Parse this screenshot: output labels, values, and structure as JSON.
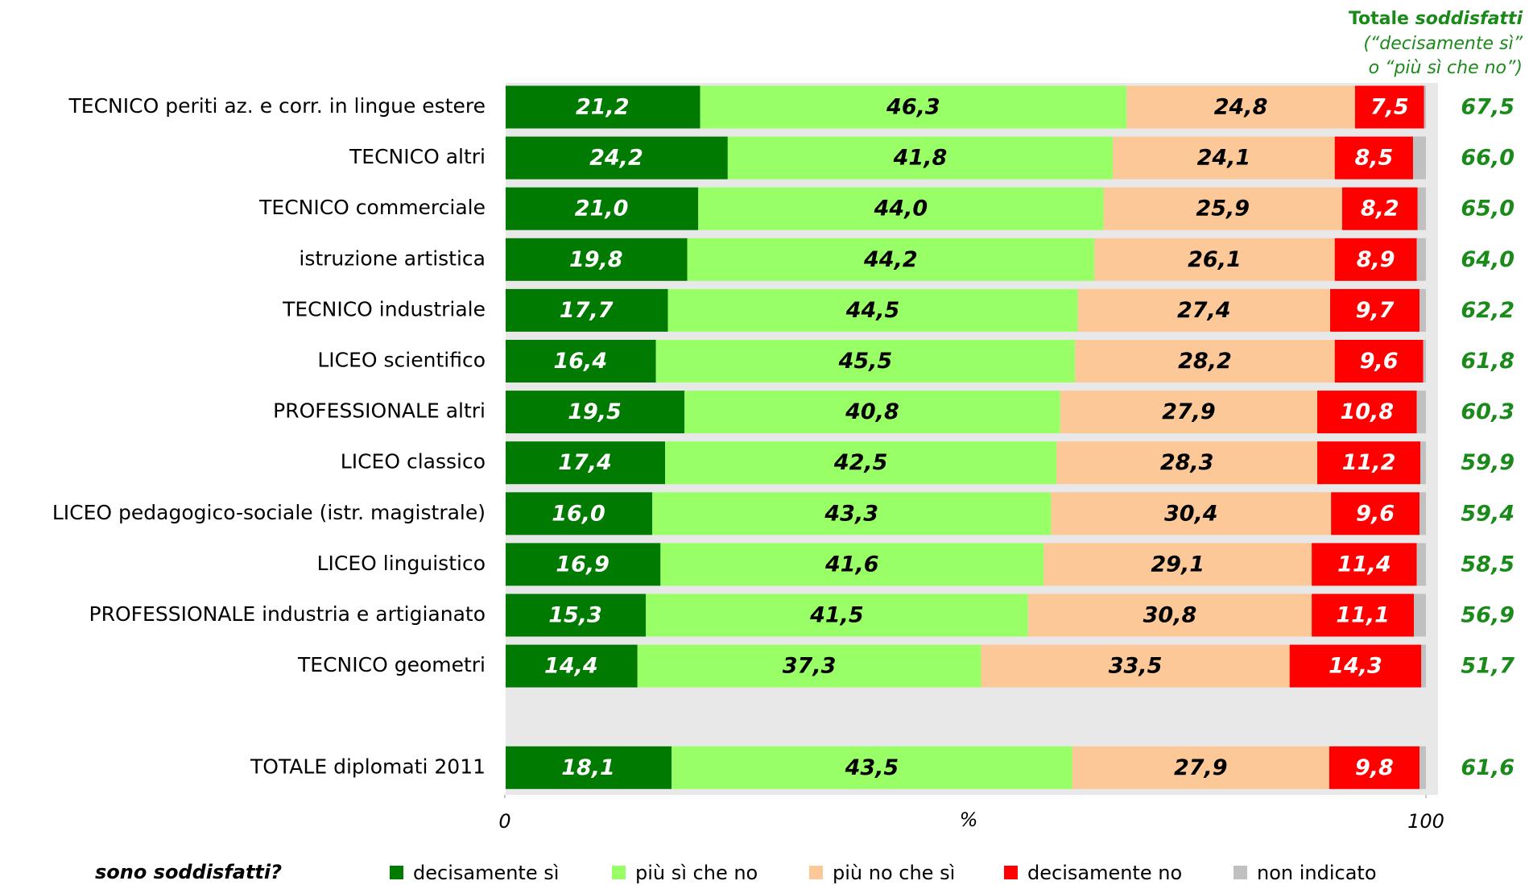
{
  "chart_data": {
    "type": "stacked_bar_horizontal",
    "total_header": {
      "bold": "Totale",
      "italic": "soddisfatti",
      "line2": "(“decisamente sì”",
      "line3": "o “più sì che no”)"
    },
    "categories": [
      "TECNICO periti az. e corr. in lingue estere",
      "TECNICO altri",
      "TECNICO commerciale",
      "istruzione artistica",
      "TECNICO industriale",
      "LICEO scientifico",
      "PROFESSIONALE altri",
      "LICEO classico",
      "LICEO pedagogico-sociale (istr. magistrale)",
      "LICEO linguistico",
      "PROFESSIONALE industria e artigianato",
      "TECNICO geometri",
      null,
      "TOTALE diplomati 2011"
    ],
    "series": [
      {
        "name": "decisamente sì",
        "color": "#007a00",
        "values": [
          21.2,
          24.2,
          21.0,
          19.8,
          17.7,
          16.4,
          19.5,
          17.4,
          16.0,
          16.9,
          15.3,
          14.4,
          null,
          18.1
        ],
        "value_labels": [
          "21,2",
          "24,2",
          "21,0",
          "19,8",
          "17,7",
          "16,4",
          "19,5",
          "17,4",
          "16,0",
          "16,9",
          "15,3",
          "14,4",
          null,
          "18,1"
        ]
      },
      {
        "name": "più sì che no",
        "color": "#99ff66",
        "values": [
          46.3,
          41.8,
          44.0,
          44.2,
          44.5,
          45.5,
          40.8,
          42.5,
          43.3,
          41.6,
          41.5,
          37.3,
          null,
          43.5
        ],
        "value_labels": [
          "46,3",
          "41,8",
          "44,0",
          "44,2",
          "44,5",
          "45,5",
          "40,8",
          "42,5",
          "43,3",
          "41,6",
          "41,5",
          "37,3",
          null,
          "43,5"
        ]
      },
      {
        "name": "più no che sì",
        "color": "#fcc898",
        "values": [
          24.8,
          24.1,
          25.9,
          26.1,
          27.4,
          28.2,
          27.9,
          28.3,
          30.4,
          29.1,
          30.8,
          33.5,
          null,
          27.9
        ],
        "value_labels": [
          "24,8",
          "24,1",
          "25,9",
          "26,1",
          "27,4",
          "28,2",
          "27,9",
          "28,3",
          "30,4",
          "29,1",
          "30,8",
          "33,5",
          null,
          "27,9"
        ]
      },
      {
        "name": "decisamente no",
        "color": "#ff0000",
        "values": [
          7.5,
          8.5,
          8.2,
          8.9,
          9.7,
          9.6,
          10.8,
          11.2,
          9.6,
          11.4,
          11.1,
          14.3,
          null,
          9.8
        ],
        "value_labels": [
          "7,5",
          "8,5",
          "8,2",
          "8,9",
          "9,7",
          "9,6",
          "10,8",
          "11,2",
          "9,6",
          "11,4",
          "11,1",
          "14,3",
          null,
          "9,8"
        ]
      },
      {
        "name": "non indicato",
        "color": "#c0c0c0",
        "values": [
          0.2,
          1.4,
          0.9,
          1.0,
          0.7,
          0.3,
          1.0,
          0.6,
          0.7,
          1.0,
          1.3,
          0.5,
          null,
          0.7
        ]
      }
    ],
    "totals": {
      "color": "#1a8a1a",
      "values": [
        67.5,
        66.0,
        65.0,
        64.0,
        62.2,
        61.8,
        60.3,
        59.9,
        59.4,
        58.5,
        56.9,
        51.7,
        null,
        61.6
      ],
      "value_labels": [
        "67,5",
        "66,0",
        "65,0",
        "64,0",
        "62,2",
        "61,8",
        "60,3",
        "59,9",
        "59,4",
        "58,5",
        "56,9",
        "51,7",
        null,
        "61,6"
      ]
    },
    "xlim": [
      0,
      100
    ],
    "xticks": [
      0,
      100
    ],
    "xlabel": "%",
    "legend_title": "sono soddisfatti?",
    "legend": "bottom",
    "background": "#e8e8e8"
  }
}
